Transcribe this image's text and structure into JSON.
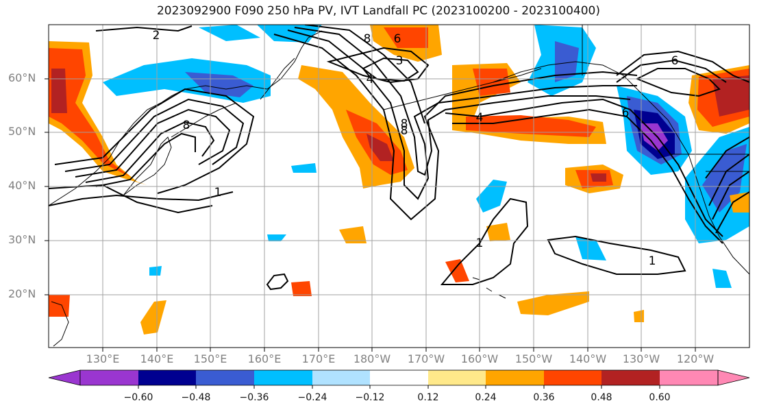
{
  "title": "2023092900 F090 250 hPa PV, IVT Landfall PC (2023100200 - 2023100400)",
  "lat_labels": [
    "60°N",
    "50°N",
    "40°N",
    "30°N",
    "20°N"
  ],
  "lon_labels": [
    "130°E",
    "140°E",
    "150°E",
    "160°E",
    "170°E",
    "180°W",
    "170°W",
    "160°W",
    "150°W",
    "140°W",
    "130°W",
    "120°W"
  ],
  "contour_labels": [
    "2",
    "8",
    "3",
    "4",
    "8",
    "6",
    "4",
    "6",
    "8",
    "8",
    "1",
    "6",
    "1",
    "1"
  ],
  "colorbar": {
    "tick_labels": [
      "−0.60",
      "−0.48",
      "−0.36",
      "−0.24",
      "−0.12",
      "0.12",
      "0.24",
      "0.36",
      "0.48",
      "0.60"
    ],
    "colors": [
      "#9a36d0",
      "#000090",
      "#3a5cd2",
      "#00bfff",
      "#b0e2ff",
      "#ffffff",
      "#ffe98a",
      "#ffa500",
      "#ff4500",
      "#b22222",
      "#ff88b4"
    ]
  },
  "palette": {
    "land_outline": "#000000",
    "grid": "#a0a0a0",
    "contour": "#000000"
  }
}
